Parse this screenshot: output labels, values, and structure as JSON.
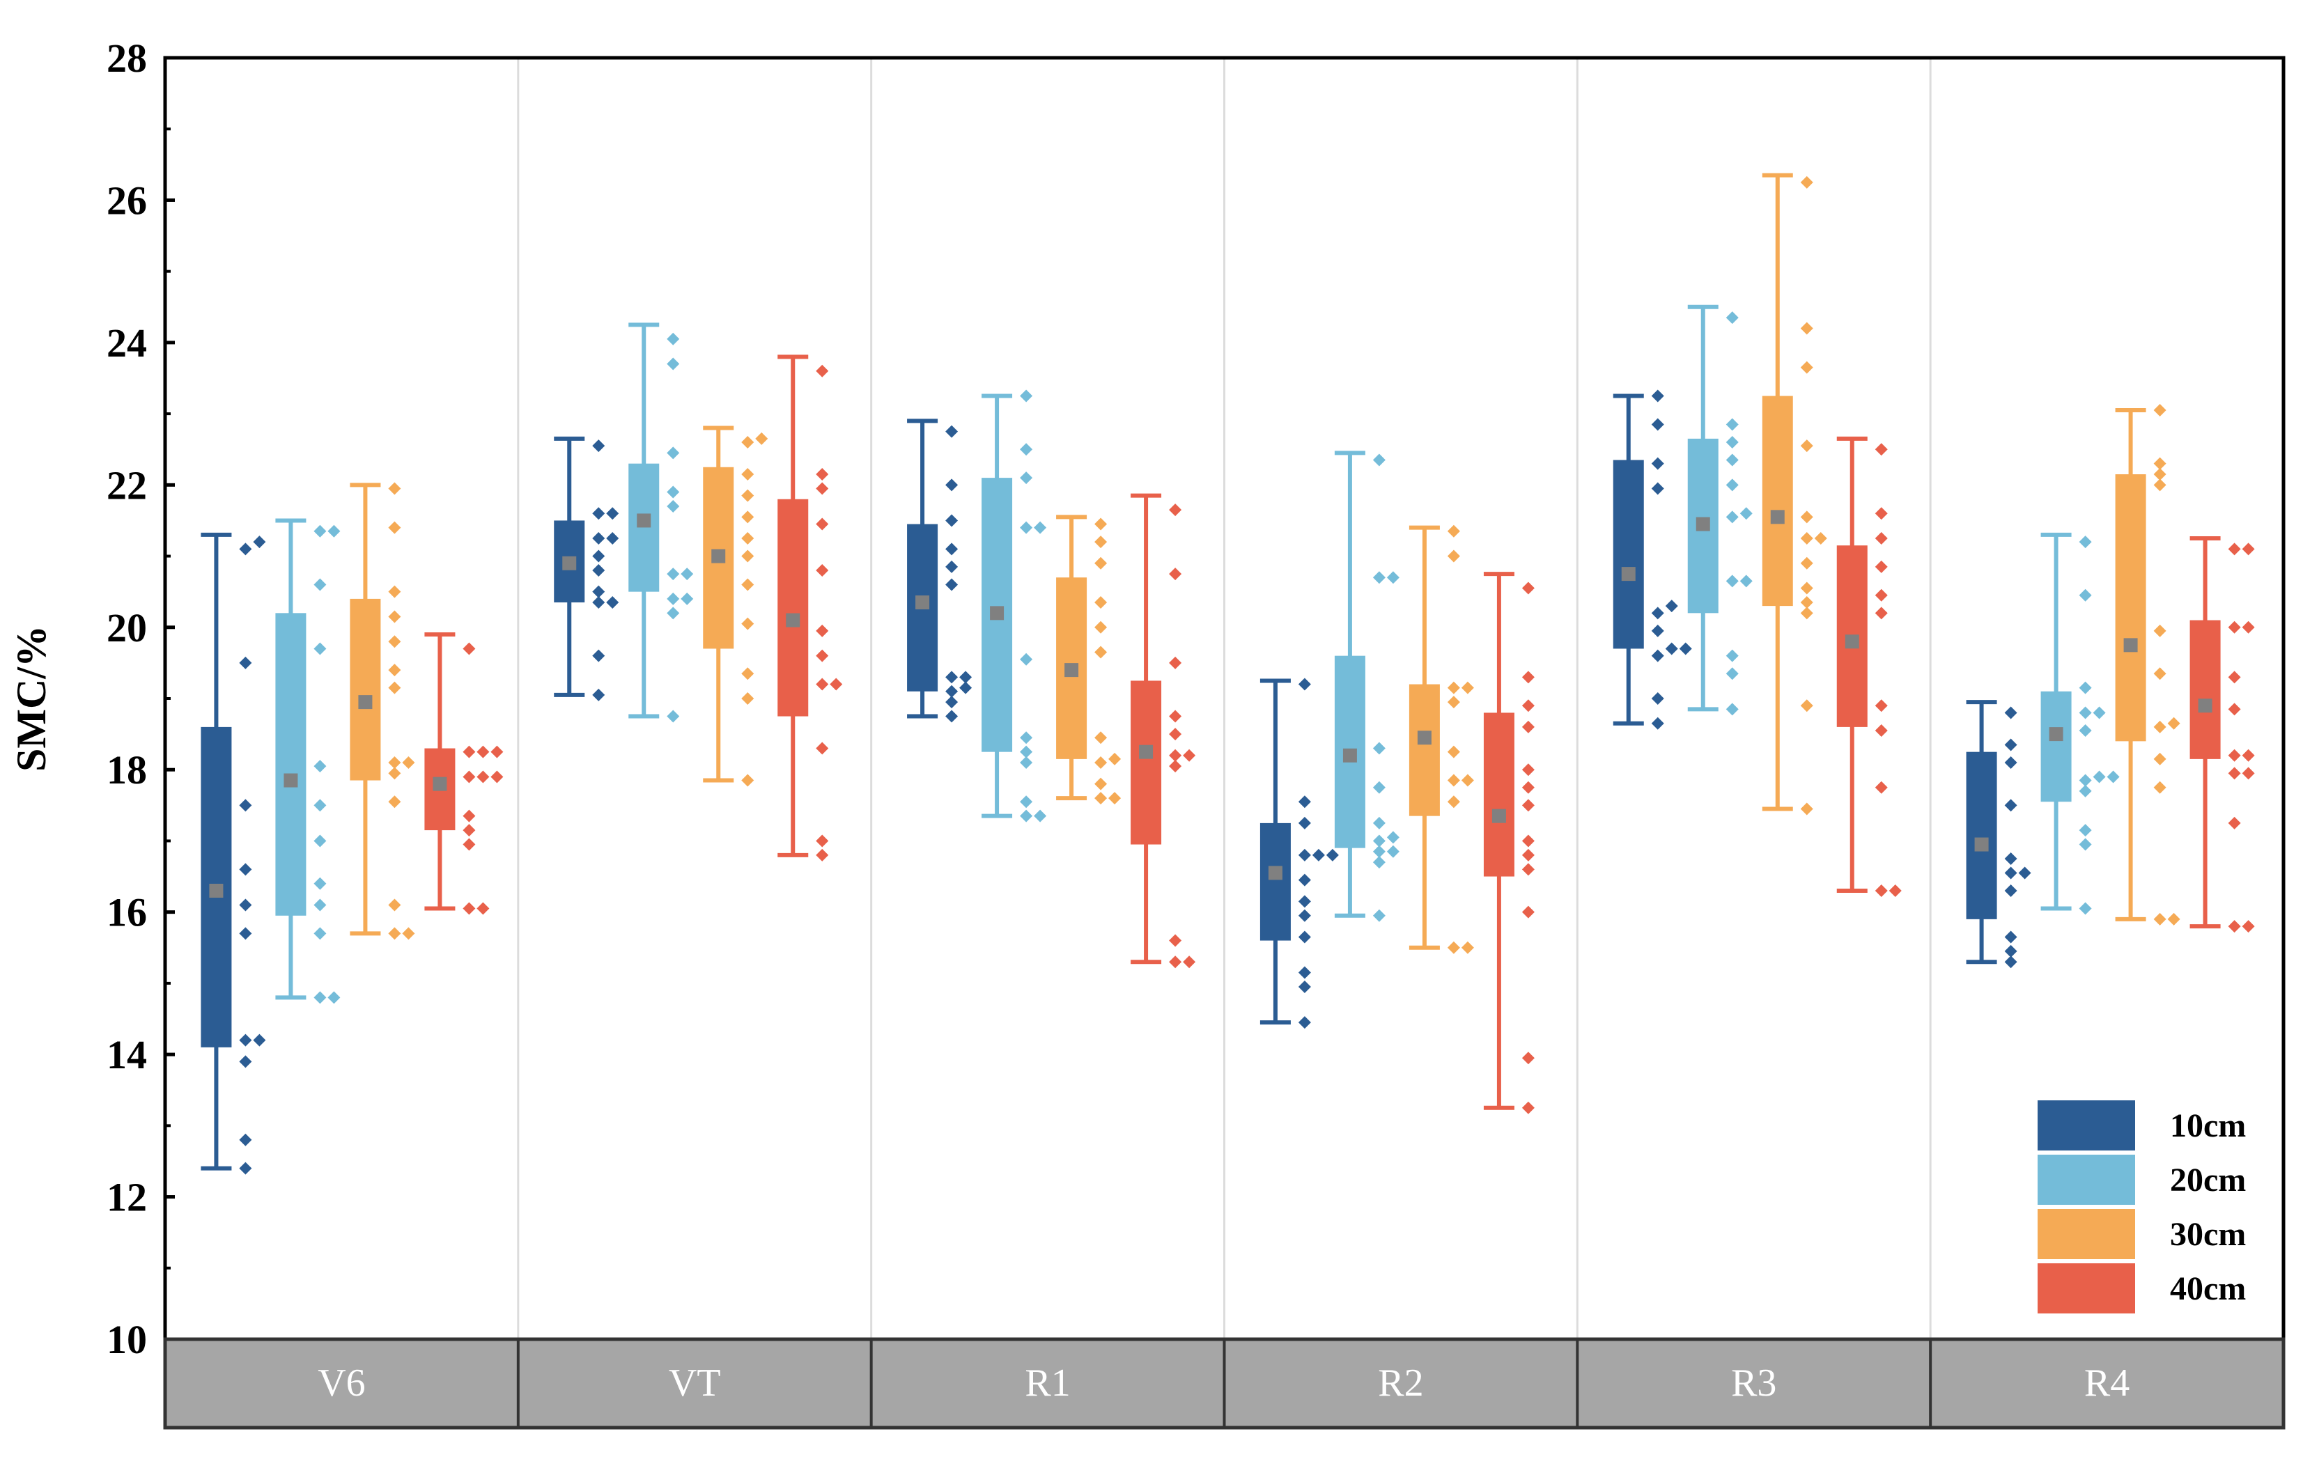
{
  "chart_data": {
    "type": "box",
    "ylabel": "SMC/%",
    "xlabel": "",
    "ylim": [
      10,
      28
    ],
    "yticks": [
      "10",
      "12",
      "14",
      "16",
      "18",
      "20",
      "22",
      "24",
      "26",
      "28"
    ],
    "categories": [
      "V6",
      "VT",
      "R1",
      "R2",
      "R3",
      "R4"
    ],
    "legend_position": "bottom-right",
    "series": [
      {
        "name": "10cm",
        "color": "#2b5c93",
        "boxes": [
          {
            "min": 12.4,
            "q1": 14.1,
            "q3": 18.6,
            "max": 21.3,
            "mean": 16.3,
            "points": [
              12.4,
              12.8,
              13.9,
              14.2,
              14.2,
              15.7,
              16.1,
              16.6,
              17.5,
              19.5,
              21.1,
              21.2
            ]
          },
          {
            "min": 19.05,
            "q1": 20.35,
            "q3": 21.5,
            "max": 22.65,
            "mean": 20.9,
            "points": [
              19.05,
              19.6,
              20.35,
              20.35,
              20.5,
              20.8,
              21.0,
              21.25,
              21.25,
              21.6,
              21.6,
              22.55
            ]
          },
          {
            "min": 18.75,
            "q1": 19.1,
            "q3": 21.45,
            "max": 22.9,
            "mean": 20.35,
            "points": [
              18.75,
              18.95,
              19.1,
              19.15,
              19.3,
              19.3,
              20.6,
              20.85,
              21.1,
              21.5,
              22.0,
              22.75
            ]
          },
          {
            "min": 14.45,
            "q1": 15.6,
            "q3": 17.25,
            "max": 19.25,
            "mean": 16.55,
            "points": [
              14.45,
              14.95,
              15.15,
              15.65,
              15.95,
              16.15,
              16.45,
              16.8,
              16.8,
              16.8,
              17.25,
              17.55,
              19.2
            ]
          },
          {
            "min": 18.65,
            "q1": 19.7,
            "q3": 22.35,
            "max": 23.25,
            "mean": 20.75,
            "points": [
              18.65,
              19.0,
              19.6,
              19.7,
              19.7,
              19.95,
              20.2,
              20.3,
              21.95,
              22.3,
              22.85,
              23.25
            ]
          },
          {
            "min": 15.3,
            "q1": 15.9,
            "q3": 18.25,
            "max": 18.95,
            "mean": 16.95,
            "points": [
              15.3,
              15.45,
              15.65,
              16.3,
              16.55,
              16.55,
              16.75,
              17.5,
              18.1,
              18.35,
              18.8
            ]
          }
        ]
      },
      {
        "name": "20cm",
        "color": "#74bcd9",
        "boxes": [
          {
            "min": 14.8,
            "q1": 15.95,
            "q3": 20.2,
            "max": 21.5,
            "mean": 17.85,
            "points": [
              14.8,
              14.8,
              15.7,
              16.1,
              16.4,
              17.0,
              17.5,
              18.05,
              19.7,
              20.6,
              21.35,
              21.35
            ]
          },
          {
            "min": 18.75,
            "q1": 20.5,
            "q3": 22.3,
            "max": 24.25,
            "mean": 21.5,
            "points": [
              18.75,
              20.2,
              20.4,
              20.4,
              20.75,
              20.75,
              21.7,
              21.9,
              22.45,
              23.7,
              24.05
            ]
          },
          {
            "min": 17.35,
            "q1": 18.25,
            "q3": 22.1,
            "max": 23.25,
            "mean": 20.2,
            "points": [
              17.35,
              17.35,
              17.55,
              18.1,
              18.25,
              18.45,
              19.55,
              21.4,
              21.4,
              22.1,
              22.5,
              23.25
            ]
          },
          {
            "min": 15.95,
            "q1": 16.9,
            "q3": 19.6,
            "max": 22.45,
            "mean": 18.2,
            "points": [
              15.95,
              16.7,
              16.85,
              16.85,
              17.0,
              17.05,
              17.25,
              17.75,
              18.3,
              20.7,
              20.7,
              22.35
            ]
          },
          {
            "min": 18.85,
            "q1": 20.2,
            "q3": 22.65,
            "max": 24.5,
            "mean": 21.45,
            "points": [
              18.85,
              19.35,
              19.6,
              20.65,
              20.65,
              21.55,
              21.6,
              22.0,
              22.35,
              22.6,
              22.85,
              24.35
            ]
          },
          {
            "min": 16.05,
            "q1": 17.55,
            "q3": 19.1,
            "max": 21.3,
            "mean": 18.5,
            "points": [
              16.05,
              16.95,
              17.15,
              17.7,
              17.85,
              17.9,
              17.9,
              18.55,
              18.8,
              18.8,
              19.15,
              20.45,
              21.2
            ]
          }
        ]
      },
      {
        "name": "30cm",
        "color": "#f5aa55",
        "boxes": [
          {
            "min": 15.7,
            "q1": 17.85,
            "q3": 20.4,
            "max": 22.0,
            "mean": 18.95,
            "points": [
              15.7,
              15.7,
              16.1,
              17.55,
              17.95,
              18.1,
              18.1,
              19.15,
              19.4,
              19.8,
              20.15,
              20.5,
              21.4,
              21.95
            ]
          },
          {
            "min": 17.85,
            "q1": 19.7,
            "q3": 22.25,
            "max": 22.8,
            "mean": 21.0,
            "points": [
              17.85,
              19.0,
              19.35,
              20.05,
              20.6,
              21.0,
              21.25,
              21.55,
              21.85,
              22.15,
              22.6,
              22.65
            ]
          },
          {
            "min": 17.6,
            "q1": 18.15,
            "q3": 20.7,
            "max": 21.55,
            "mean": 19.4,
            "points": [
              17.6,
              17.6,
              17.8,
              18.1,
              18.15,
              18.45,
              19.65,
              20.0,
              20.35,
              20.9,
              21.2,
              21.45
            ]
          },
          {
            "min": 15.5,
            "q1": 17.35,
            "q3": 19.2,
            "max": 21.4,
            "mean": 18.45,
            "points": [
              15.5,
              15.5,
              17.55,
              17.85,
              17.85,
              18.25,
              18.95,
              19.15,
              19.15,
              21.0,
              21.35
            ]
          },
          {
            "min": 17.45,
            "q1": 20.3,
            "q3": 23.25,
            "max": 26.35,
            "mean": 21.55,
            "points": [
              17.45,
              18.9,
              20.2,
              20.35,
              20.55,
              20.9,
              21.25,
              21.25,
              21.55,
              22.55,
              23.65,
              24.2,
              26.25
            ]
          },
          {
            "min": 15.9,
            "q1": 18.4,
            "q3": 22.15,
            "max": 23.05,
            "mean": 19.75,
            "points": [
              15.9,
              15.9,
              17.75,
              18.15,
              18.6,
              18.65,
              19.35,
              19.95,
              22.0,
              22.15,
              22.3,
              23.05
            ]
          }
        ]
      },
      {
        "name": "40cm",
        "color": "#e8604a",
        "boxes": [
          {
            "min": 16.05,
            "q1": 17.15,
            "q3": 18.3,
            "max": 19.9,
            "mean": 17.8,
            "points": [
              16.05,
              16.05,
              16.95,
              17.15,
              17.35,
              17.9,
              17.9,
              17.9,
              18.25,
              18.25,
              18.25,
              19.7
            ]
          },
          {
            "min": 16.8,
            "q1": 18.75,
            "q3": 21.8,
            "max": 23.8,
            "mean": 20.1,
            "points": [
              16.8,
              17.0,
              18.3,
              19.2,
              19.2,
              19.6,
              19.95,
              20.8,
              21.45,
              21.95,
              22.15,
              23.6
            ]
          },
          {
            "min": 15.3,
            "q1": 16.95,
            "q3": 19.25,
            "max": 21.85,
            "mean": 18.25,
            "points": [
              15.3,
              15.3,
              15.6,
              18.05,
              18.2,
              18.2,
              18.5,
              18.75,
              19.5,
              20.75,
              21.65
            ]
          },
          {
            "min": 13.25,
            "q1": 16.5,
            "q3": 18.8,
            "max": 20.75,
            "mean": 17.35,
            "points": [
              13.25,
              13.95,
              16.0,
              16.6,
              16.8,
              17.0,
              17.5,
              17.75,
              18.0,
              18.6,
              18.9,
              19.3,
              20.55
            ]
          },
          {
            "min": 16.3,
            "q1": 18.6,
            "q3": 21.15,
            "max": 22.65,
            "mean": 19.8,
            "points": [
              16.3,
              16.3,
              17.75,
              18.55,
              18.9,
              20.2,
              20.45,
              20.85,
              21.25,
              21.6,
              22.5
            ]
          },
          {
            "min": 15.8,
            "q1": 18.15,
            "q3": 20.1,
            "max": 21.25,
            "mean": 18.9,
            "points": [
              15.8,
              15.8,
              17.25,
              17.95,
              17.95,
              18.2,
              18.2,
              18.85,
              19.3,
              20.0,
              20.0,
              21.1,
              21.1
            ]
          }
        ]
      }
    ]
  }
}
